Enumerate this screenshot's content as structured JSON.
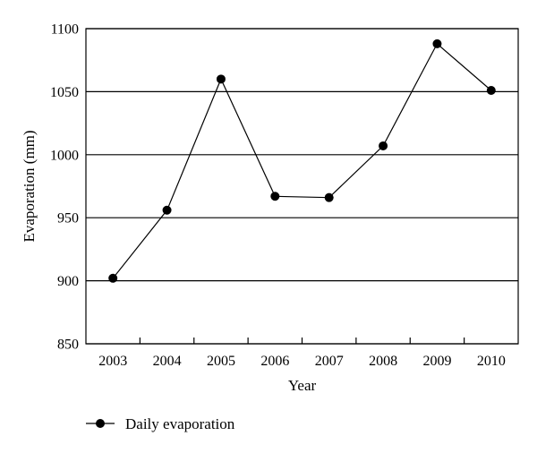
{
  "chart_data": {
    "type": "line",
    "title": "",
    "xlabel": "Year",
    "ylabel": "Evaporation (mm)",
    "categories": [
      "2003",
      "2004",
      "2005",
      "2006",
      "2007",
      "2008",
      "2009",
      "2010"
    ],
    "ylim": [
      850,
      1100
    ],
    "yticks": [
      "850",
      "900",
      "950",
      "1000",
      "1050",
      "1100"
    ],
    "grid": "horizontal",
    "legend_position": "bottom-left",
    "series": [
      {
        "name": "Daily evaporation",
        "values": [
          902,
          956,
          1060,
          967,
          966,
          1007,
          1088,
          1051
        ],
        "color": "#000000",
        "marker": "circle"
      }
    ]
  }
}
